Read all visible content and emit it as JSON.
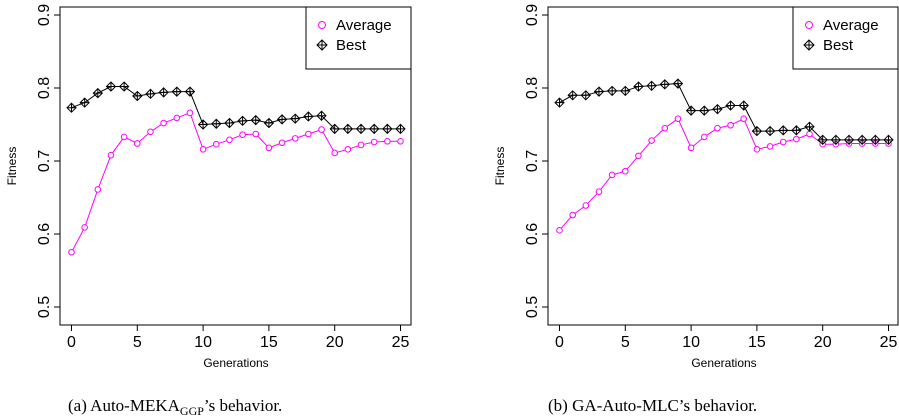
{
  "colors": {
    "average": "#ff00ff",
    "best": "#000000",
    "axis": "#000000",
    "background": "#ffffff"
  },
  "chart_data": [
    {
      "type": "line",
      "panel_id": "a",
      "caption": {
        "prefix": "(a) Auto-MEKA",
        "subscript": "GGP",
        "suffix": "’s behavior."
      },
      "xlabel": "Generations",
      "ylabel": "Fitness",
      "xlim": [
        0,
        25
      ],
      "ylim": [
        0.5,
        0.9
      ],
      "xticks": [
        0,
        5,
        10,
        15,
        20,
        25
      ],
      "yticks": [
        0.5,
        0.6,
        0.7,
        0.8,
        0.9
      ],
      "grid": false,
      "legend_position": "top-right",
      "x": [
        0,
        1,
        2,
        3,
        4,
        5,
        6,
        7,
        8,
        9,
        10,
        11,
        12,
        13,
        14,
        15,
        16,
        17,
        18,
        19,
        20,
        21,
        22,
        23,
        24,
        25
      ],
      "series": [
        {
          "name": "Average",
          "marker": "circle",
          "color": "#ff00ff",
          "values": [
            0.575,
            0.609,
            0.661,
            0.708,
            0.733,
            0.724,
            0.74,
            0.752,
            0.759,
            0.766,
            0.716,
            0.723,
            0.729,
            0.736,
            0.737,
            0.718,
            0.725,
            0.731,
            0.737,
            0.743,
            0.711,
            0.716,
            0.722,
            0.726,
            0.727,
            0.727
          ]
        },
        {
          "name": "Best",
          "marker": "diamond-plus",
          "color": "#000000",
          "values": [
            0.773,
            0.78,
            0.793,
            0.802,
            0.802,
            0.789,
            0.792,
            0.794,
            0.795,
            0.795,
            0.75,
            0.751,
            0.752,
            0.755,
            0.756,
            0.752,
            0.757,
            0.758,
            0.761,
            0.762,
            0.744,
            0.744,
            0.744,
            0.744,
            0.744,
            0.744
          ]
        }
      ]
    },
    {
      "type": "line",
      "panel_id": "b",
      "caption": {
        "prefix": "(b) GA-Auto-MLC’s behavior.",
        "subscript": "",
        "suffix": ""
      },
      "xlabel": "Generations",
      "ylabel": "Fitness",
      "xlim": [
        0,
        25
      ],
      "ylim": [
        0.5,
        0.9
      ],
      "xticks": [
        0,
        5,
        10,
        15,
        20,
        25
      ],
      "yticks": [
        0.5,
        0.6,
        0.7,
        0.8,
        0.9
      ],
      "grid": false,
      "legend_position": "top-right",
      "x": [
        0,
        1,
        2,
        3,
        4,
        5,
        6,
        7,
        8,
        9,
        10,
        11,
        12,
        13,
        14,
        15,
        16,
        17,
        18,
        19,
        20,
        21,
        22,
        23,
        24,
        25
      ],
      "series": [
        {
          "name": "Average",
          "marker": "circle",
          "color": "#ff00ff",
          "values": [
            0.605,
            0.626,
            0.639,
            0.658,
            0.681,
            0.686,
            0.707,
            0.728,
            0.745,
            0.758,
            0.718,
            0.733,
            0.745,
            0.749,
            0.758,
            0.716,
            0.72,
            0.726,
            0.73,
            0.737,
            0.723,
            0.723,
            0.724,
            0.724,
            0.724,
            0.724
          ]
        },
        {
          "name": "Best",
          "marker": "diamond-plus",
          "color": "#000000",
          "values": [
            0.78,
            0.79,
            0.79,
            0.795,
            0.796,
            0.796,
            0.802,
            0.803,
            0.805,
            0.806,
            0.769,
            0.769,
            0.771,
            0.776,
            0.776,
            0.741,
            0.741,
            0.742,
            0.742,
            0.747,
            0.729,
            0.729,
            0.729,
            0.729,
            0.729,
            0.729
          ]
        }
      ]
    }
  ]
}
